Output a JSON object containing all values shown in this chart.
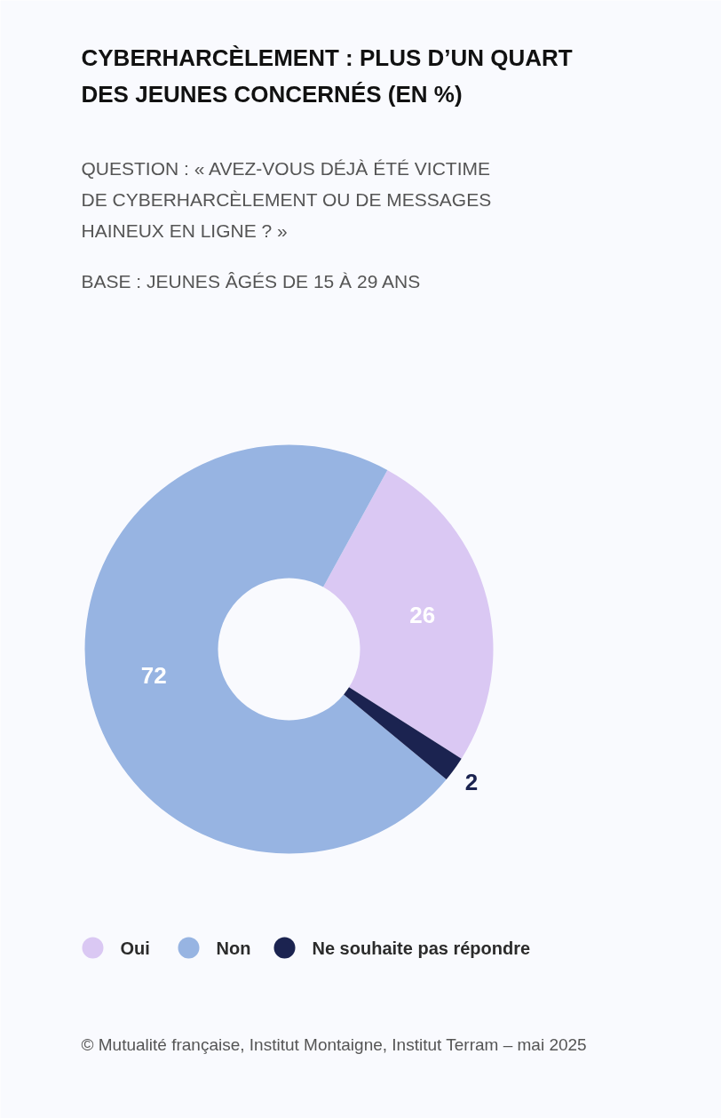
{
  "chart_data": {
    "type": "donut",
    "title": "CYBERHARCÈLEMENT : PLUS D’UN QUART DES JEUNES CONCERNÉS (EN %)",
    "subtitle": "QUESTION : « AVEZ-VOUS DÉJÀ ÉTÉ VICTIME DE CYBERHARCÈLEMENT OU DE MESSAGES HAINEUX EN LIGNE ? »",
    "annotations": [
      "BASE : JEUNES ÂGÉS DE 15 À 29 ANS",
      "© Mutualité française, Institut Montaigne, Institut Terram – mai 2025"
    ],
    "categories": [
      "Oui",
      "Non",
      "Ne souhaite pas répondre"
    ],
    "values": [
      26,
      72,
      2
    ],
    "colors": [
      "#dac8f3",
      "#97b4e2",
      "#1b2350"
    ],
    "data_labels": true,
    "legend": "bottom"
  }
}
